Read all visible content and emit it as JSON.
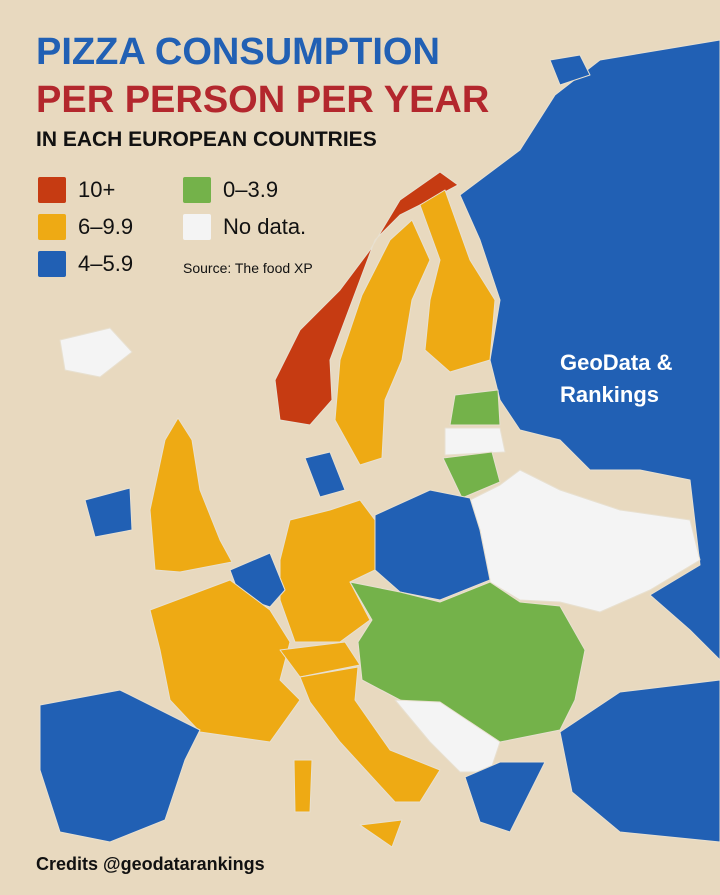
{
  "header": {
    "title_line1": "PIZZA CONSUMPTION",
    "title_line2": "PER PERSON PER YEAR",
    "subtitle": "IN EACH EUROPEAN COUNTRIES"
  },
  "legend": [
    {
      "label": "10+",
      "color": "#c63b12"
    },
    {
      "label": "6–9.9",
      "color": "#eeaa14"
    },
    {
      "label": "4–5.9",
      "color": "#2160b4"
    },
    {
      "label": "0–3.9",
      "color": "#74b24a"
    },
    {
      "label": "No data.",
      "color": "#f4f4f4"
    }
  ],
  "source": "Source: The food XP",
  "watermark": [
    "GeoData &",
    "Rankings"
  ],
  "credits": "Credits @geodatarankings"
}
